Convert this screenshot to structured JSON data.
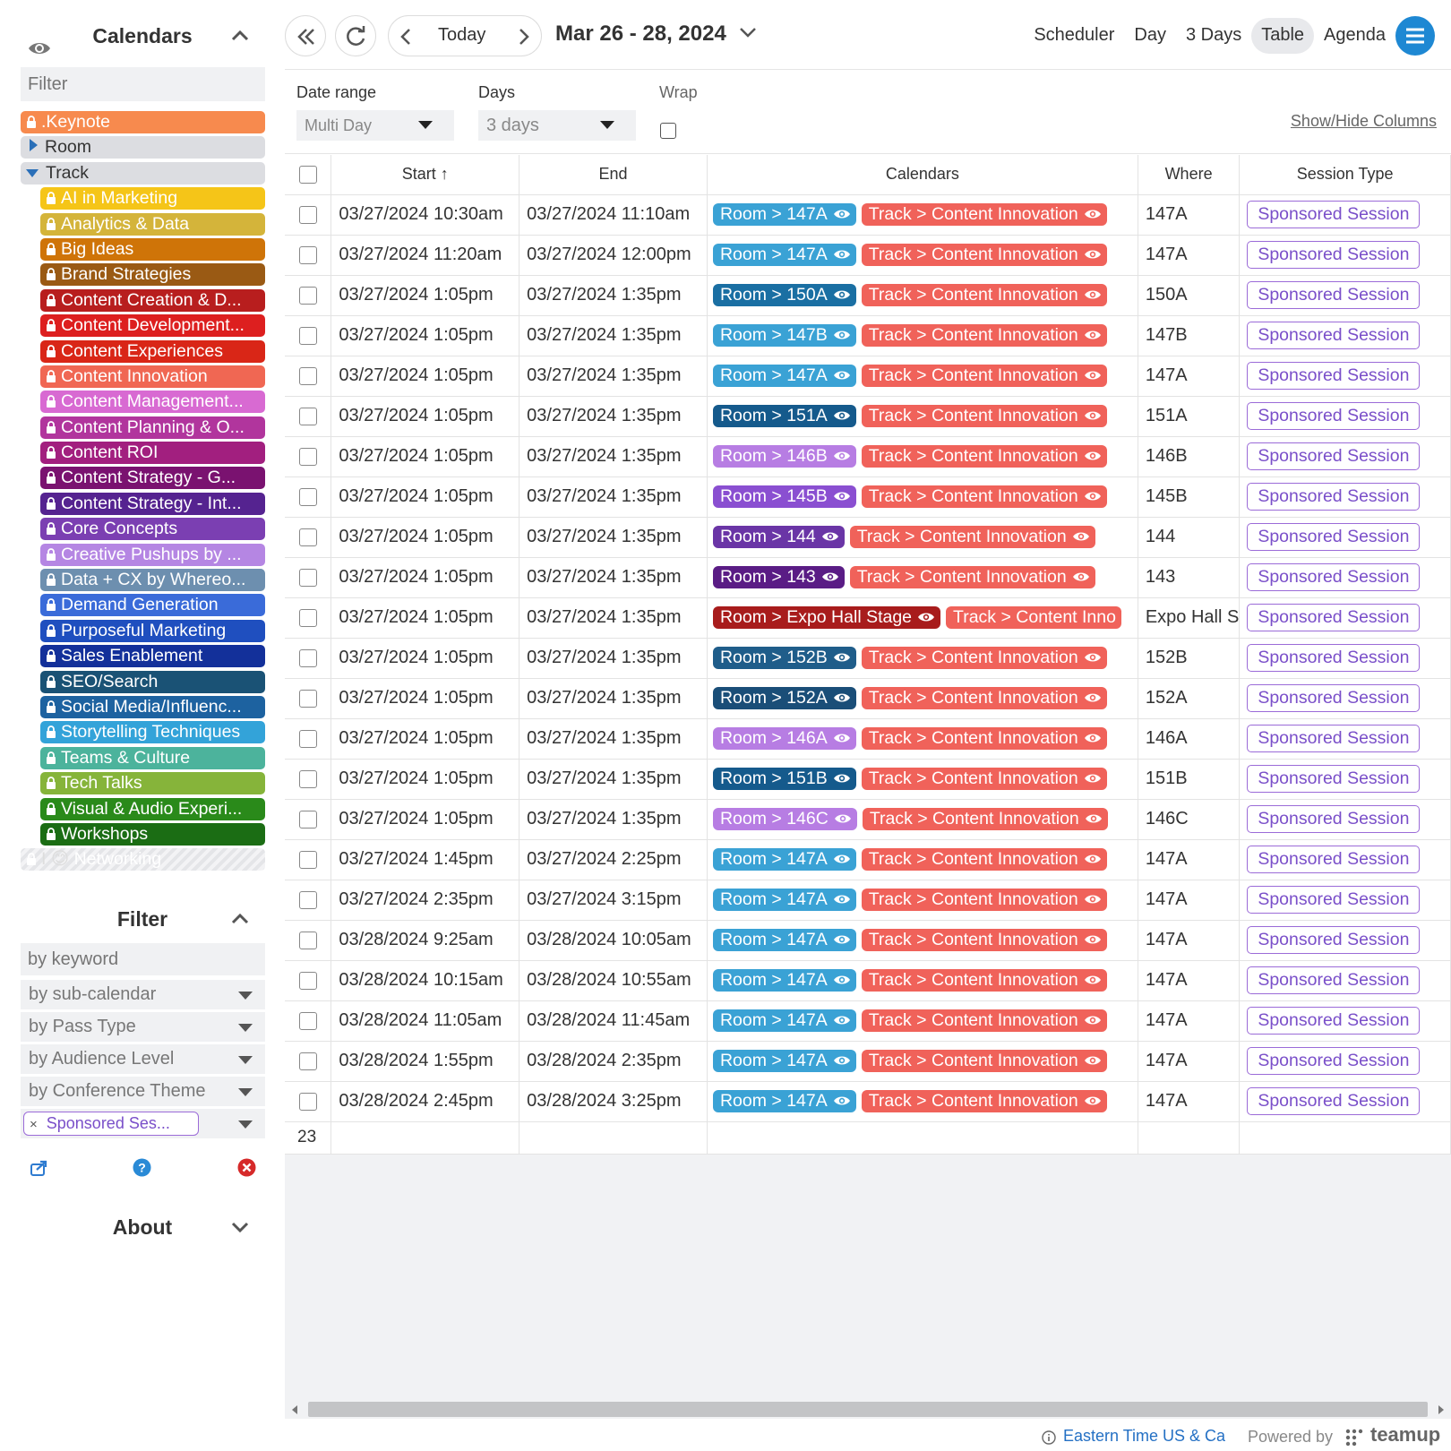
{
  "sidebar": {
    "calendars_title": "Calendars",
    "filter_placeholder": "Filter",
    "filter_title": "Filter",
    "about_title": "About",
    "calendars": [
      {
        "label": ".Keynote",
        "color": "#f78a4e",
        "level": "top",
        "locked": true
      },
      {
        "label": "Room",
        "color": "#dcdde1",
        "level": "group",
        "expanded": false
      },
      {
        "label": "Track",
        "color": "#dcdde1",
        "level": "group",
        "expanded": true
      },
      {
        "label": "AI in Marketing",
        "color": "#f5c518",
        "level": "sub",
        "locked": true
      },
      {
        "label": "Analytics & Data",
        "color": "#d4b43a",
        "level": "sub",
        "locked": true
      },
      {
        "label": "Big Ideas",
        "color": "#cf7408",
        "level": "sub",
        "locked": true
      },
      {
        "label": "Brand Strategies",
        "color": "#9a5a14",
        "level": "sub",
        "locked": true
      },
      {
        "label": "Content Creation & D...",
        "color": "#b81e1e",
        "level": "sub",
        "locked": true
      },
      {
        "label": "Content Development...",
        "color": "#dd1f1f",
        "level": "sub",
        "locked": true
      },
      {
        "label": "Content Experiences",
        "color": "#d92617",
        "level": "sub",
        "locked": true
      },
      {
        "label": "Content Innovation",
        "color": "#f06753",
        "level": "sub",
        "locked": true
      },
      {
        "label": "Content Management...",
        "color": "#d86ad2",
        "level": "sub",
        "locked": true
      },
      {
        "label": "Content Planning & O...",
        "color": "#b1359d",
        "level": "sub",
        "locked": true
      },
      {
        "label": "Content ROI",
        "color": "#a21f7f",
        "level": "sub",
        "locked": true
      },
      {
        "label": "Content Strategy - G...",
        "color": "#7a1270",
        "level": "sub",
        "locked": true
      },
      {
        "label": "Content Strategy - Int...",
        "color": "#552390",
        "level": "sub",
        "locked": true
      },
      {
        "label": "Core Concepts",
        "color": "#7b3fb2",
        "level": "sub",
        "locked": true
      },
      {
        "label": "Creative Pushups by ...",
        "color": "#b586e3",
        "level": "sub",
        "locked": true
      },
      {
        "label": "Data + CX by Whereo...",
        "color": "#6d8faf",
        "level": "sub",
        "locked": true
      },
      {
        "label": "Demand Generation",
        "color": "#3a6bd9",
        "level": "sub",
        "locked": true
      },
      {
        "label": "Purposeful Marketing",
        "color": "#1f4fbf",
        "level": "sub",
        "locked": true
      },
      {
        "label": "Sales Enablement",
        "color": "#13309a",
        "level": "sub",
        "locked": true
      },
      {
        "label": "SEO/Search",
        "color": "#1a5275",
        "level": "sub",
        "locked": true
      },
      {
        "label": "Social Media/Influenc...",
        "color": "#1d62a0",
        "level": "sub",
        "locked": true
      },
      {
        "label": "Storytelling Techniques",
        "color": "#33a3d9",
        "level": "sub",
        "locked": true
      },
      {
        "label": "Teams & Culture",
        "color": "#4cb39c",
        "level": "sub",
        "locked": true
      },
      {
        "label": "Tech Talks",
        "color": "#86b43a",
        "level": "sub",
        "locked": true
      },
      {
        "label": "Visual & Audio Experi...",
        "color": "#2a8a1a",
        "level": "sub",
        "locked": true
      },
      {
        "label": "Workshops",
        "color": "#1b6d14",
        "level": "sub",
        "locked": true
      },
      {
        "label": "Networking",
        "color": "#e0e1e5",
        "level": "hidden",
        "locked": true,
        "prefix": "I 😊"
      }
    ],
    "filters": {
      "keyword_placeholder": "by keyword",
      "selects": [
        "by sub-calendar",
        "by Pass Type",
        "by Audience Level",
        "by Conference Theme"
      ],
      "active_tag": "Sponsored Ses...",
      "remove_symbol": "×"
    },
    "icons": [
      "eye-icon",
      "share-icon",
      "help-icon",
      "clear-icon"
    ]
  },
  "toolbar": {
    "today_label": "Today",
    "date_range": "Mar 26 - 28, 2024",
    "views": [
      "Scheduler",
      "Day",
      "3 Days",
      "Table",
      "Agenda"
    ],
    "active_view": "Table",
    "accent_color": "#1e88d3"
  },
  "options": {
    "date_range_label": "Date range",
    "date_range_value": "Multi Day",
    "days_label": "Days",
    "days_value": "3 days",
    "wrap_label": "Wrap",
    "show_hide_columns": "Show/Hide Columns"
  },
  "table": {
    "columns": [
      "Start",
      "End",
      "Calendars",
      "Where",
      "Session Type"
    ],
    "sort_column": "Start",
    "sort_indicator": "↑",
    "rows": [
      {
        "start": "03/27/2024 10:30am",
        "end": "03/27/2024 11:10am",
        "room": "Room > 147A",
        "room_color": "#3aa2d5",
        "track": "Track > Content Innovation",
        "where": "147A",
        "session_type": "Sponsored Session"
      },
      {
        "start": "03/27/2024 11:20am",
        "end": "03/27/2024 12:00pm",
        "room": "Room > 147A",
        "room_color": "#3aa2d5",
        "track": "Track > Content Innovation",
        "where": "147A",
        "session_type": "Sponsored Session"
      },
      {
        "start": "03/27/2024 1:05pm",
        "end": "03/27/2024 1:35pm",
        "room": "Room > 150A",
        "room_color": "#1a6fa3",
        "track": "Track > Content Innovation",
        "where": "150A",
        "session_type": "Sponsored Session"
      },
      {
        "start": "03/27/2024 1:05pm",
        "end": "03/27/2024 1:35pm",
        "room": "Room > 147B",
        "room_color": "#3aa2d5",
        "track": "Track > Content Innovation",
        "where": "147B",
        "session_type": "Sponsored Session"
      },
      {
        "start": "03/27/2024 1:05pm",
        "end": "03/27/2024 1:35pm",
        "room": "Room > 147A",
        "room_color": "#3aa2d5",
        "track": "Track > Content Innovation",
        "where": "147A",
        "session_type": "Sponsored Session"
      },
      {
        "start": "03/27/2024 1:05pm",
        "end": "03/27/2024 1:35pm",
        "room": "Room > 151A",
        "room_color": "#155a8c",
        "track": "Track > Content Innovation",
        "where": "151A",
        "session_type": "Sponsored Session"
      },
      {
        "start": "03/27/2024 1:05pm",
        "end": "03/27/2024 1:35pm",
        "room": "Room > 146B",
        "room_color": "#b77de3",
        "track": "Track > Content Innovation",
        "where": "146B",
        "session_type": "Sponsored Session"
      },
      {
        "start": "03/27/2024 1:05pm",
        "end": "03/27/2024 1:35pm",
        "room": "Room > 145B",
        "room_color": "#8a4fd1",
        "track": "Track > Content Innovation",
        "where": "145B",
        "session_type": "Sponsored Session"
      },
      {
        "start": "03/27/2024 1:05pm",
        "end": "03/27/2024 1:35pm",
        "room": "Room > 144",
        "room_color": "#6a35a6",
        "track": "Track > Content Innovation",
        "where": "144",
        "session_type": "Sponsored Session"
      },
      {
        "start": "03/27/2024 1:05pm",
        "end": "03/27/2024 1:35pm",
        "room": "Room > 143",
        "room_color": "#5a1c85",
        "track": "Track > Content Innovation",
        "where": "143",
        "session_type": "Sponsored Session"
      },
      {
        "start": "03/27/2024 1:05pm",
        "end": "03/27/2024 1:35pm",
        "room": "Room > Expo Hall Stage",
        "room_color": "#a81c1c",
        "track": "Track > Content Inno",
        "where": "Expo Hall S",
        "session_type": "Sponsored Session"
      },
      {
        "start": "03/27/2024 1:05pm",
        "end": "03/27/2024 1:35pm",
        "room": "Room > 152B",
        "room_color": "#1f5d8a",
        "track": "Track > Content Innovation",
        "where": "152B",
        "session_type": "Sponsored Session"
      },
      {
        "start": "03/27/2024 1:05pm",
        "end": "03/27/2024 1:35pm",
        "room": "Room > 152A",
        "room_color": "#1a4e78",
        "track": "Track > Content Innovation",
        "where": "152A",
        "session_type": "Sponsored Session"
      },
      {
        "start": "03/27/2024 1:05pm",
        "end": "03/27/2024 1:35pm",
        "room": "Room > 146A",
        "room_color": "#b77de3",
        "track": "Track > Content Innovation",
        "where": "146A",
        "session_type": "Sponsored Session"
      },
      {
        "start": "03/27/2024 1:05pm",
        "end": "03/27/2024 1:35pm",
        "room": "Room > 151B",
        "room_color": "#155a8c",
        "track": "Track > Content Innovation",
        "where": "151B",
        "session_type": "Sponsored Session"
      },
      {
        "start": "03/27/2024 1:05pm",
        "end": "03/27/2024 1:35pm",
        "room": "Room > 146C",
        "room_color": "#b77de3",
        "track": "Track > Content Innovation",
        "where": "146C",
        "session_type": "Sponsored Session"
      },
      {
        "start": "03/27/2024 1:45pm",
        "end": "03/27/2024 2:25pm",
        "room": "Room > 147A",
        "room_color": "#3aa2d5",
        "track": "Track > Content Innovation",
        "where": "147A",
        "session_type": "Sponsored Session"
      },
      {
        "start": "03/27/2024 2:35pm",
        "end": "03/27/2024 3:15pm",
        "room": "Room > 147A",
        "room_color": "#3aa2d5",
        "track": "Track > Content Innovation",
        "where": "147A",
        "session_type": "Sponsored Session"
      },
      {
        "start": "03/28/2024 9:25am",
        "end": "03/28/2024 10:05am",
        "room": "Room > 147A",
        "room_color": "#3aa2d5",
        "track": "Track > Content Innovation",
        "where": "147A",
        "session_type": "Sponsored Session"
      },
      {
        "start": "03/28/2024 10:15am",
        "end": "03/28/2024 10:55am",
        "room": "Room > 147A",
        "room_color": "#3aa2d5",
        "track": "Track > Content Innovation",
        "where": "147A",
        "session_type": "Sponsored Session"
      },
      {
        "start": "03/28/2024 11:05am",
        "end": "03/28/2024 11:45am",
        "room": "Room > 147A",
        "room_color": "#3aa2d5",
        "track": "Track > Content Innovation",
        "where": "147A",
        "session_type": "Sponsored Session"
      },
      {
        "start": "03/28/2024 1:55pm",
        "end": "03/28/2024 2:35pm",
        "room": "Room > 147A",
        "room_color": "#3aa2d5",
        "track": "Track > Content Innovation",
        "where": "147A",
        "session_type": "Sponsored Session"
      },
      {
        "start": "03/28/2024 2:45pm",
        "end": "03/28/2024 3:25pm",
        "room": "Room > 147A",
        "room_color": "#3aa2d5",
        "track": "Track > Content Innovation",
        "where": "147A",
        "session_type": "Sponsored Session"
      }
    ],
    "track_color": "#f0625a",
    "session_type_color": "#7a4fc9",
    "row_count": "23"
  },
  "footer": {
    "timezone": "Eastern Time US & Ca",
    "powered_by": "Powered by",
    "brand": "teamup"
  }
}
